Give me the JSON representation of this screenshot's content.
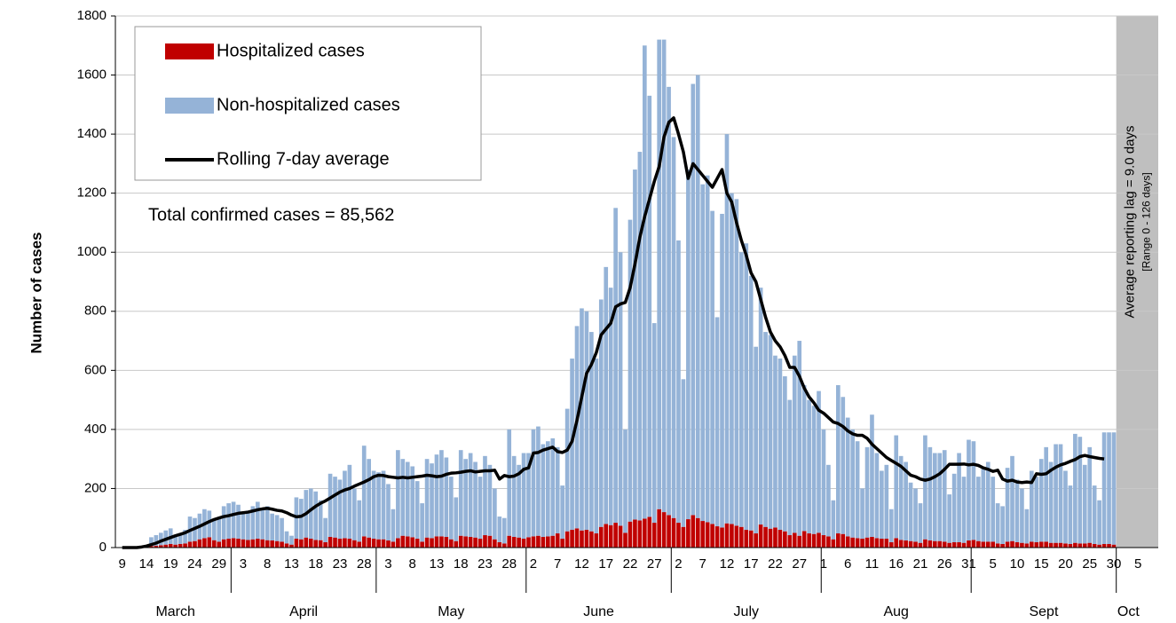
{
  "chart_data": {
    "type": "bar",
    "y_label": "Number of cases",
    "annotations": [
      "Total confirmed cases = 85,562"
    ],
    "band_labels": [
      "Average reporting lag = 9.0 days",
      "[Range 0 - 126 days]"
    ],
    "band_color": "#bfbfbf",
    "months": [
      "March",
      "April",
      "May",
      "June",
      "July",
      "Aug",
      "Sept",
      "Oct"
    ],
    "ylim": [
      0,
      1800
    ],
    "yticks": [
      0,
      200,
      400,
      600,
      800,
      1000,
      1200,
      1400,
      1600,
      1800
    ],
    "grid": true,
    "categories": [
      "9",
      null,
      null,
      null,
      null,
      "14",
      null,
      null,
      null,
      null,
      "19",
      null,
      null,
      null,
      null,
      "24",
      null,
      null,
      null,
      null,
      "29",
      null,
      null,
      null,
      null,
      "3",
      null,
      null,
      null,
      null,
      "8",
      null,
      null,
      null,
      null,
      "13",
      null,
      null,
      null,
      null,
      "18",
      null,
      null,
      null,
      null,
      "23",
      null,
      null,
      null,
      null,
      "28",
      null,
      null,
      null,
      null,
      "3",
      null,
      null,
      null,
      null,
      "8",
      null,
      null,
      null,
      null,
      "13",
      null,
      null,
      null,
      null,
      "18",
      null,
      null,
      null,
      null,
      "23",
      null,
      null,
      null,
      null,
      "28",
      null,
      null,
      null,
      null,
      "2",
      null,
      null,
      null,
      null,
      "7",
      null,
      null,
      null,
      null,
      "12",
      null,
      null,
      null,
      null,
      "17",
      null,
      null,
      null,
      null,
      "22",
      null,
      null,
      null,
      null,
      "27",
      null,
      null,
      null,
      null,
      "2",
      null,
      null,
      null,
      null,
      "7",
      null,
      null,
      null,
      null,
      "12",
      null,
      null,
      null,
      null,
      "17",
      null,
      null,
      null,
      null,
      "22",
      null,
      null,
      null,
      null,
      "27",
      null,
      null,
      null,
      null,
      "1",
      null,
      null,
      null,
      null,
      "6",
      null,
      null,
      null,
      null,
      "11",
      null,
      null,
      null,
      null,
      "16",
      null,
      null,
      null,
      null,
      "21",
      null,
      null,
      null,
      null,
      "26",
      null,
      null,
      null,
      null,
      "31",
      null,
      null,
      null,
      null,
      "5",
      null,
      null,
      null,
      null,
      "10",
      null,
      null,
      null,
      null,
      "15",
      null,
      null,
      null,
      null,
      "20",
      null,
      null,
      null,
      null,
      "25",
      null,
      null,
      null,
      null,
      "30",
      null,
      null,
      null,
      null,
      "5"
    ],
    "series": [
      {
        "name": "Hospitalized cases",
        "kind": "bar",
        "color": "#c00000",
        "values": [
          0,
          0,
          0,
          1,
          1,
          2,
          5,
          6,
          8,
          10,
          12,
          10,
          12,
          14,
          20,
          22,
          28,
          32,
          35,
          25,
          20,
          28,
          30,
          32,
          30,
          28,
          26,
          28,
          30,
          28,
          25,
          24,
          22,
          20,
          14,
          10,
          30,
          28,
          34,
          30,
          26,
          25,
          18,
          36,
          34,
          30,
          32,
          30,
          25,
          20,
          38,
          34,
          30,
          28,
          28,
          24,
          20,
          32,
          40,
          38,
          35,
          30,
          20,
          34,
          32,
          38,
          38,
          36,
          28,
          22,
          40,
          38,
          36,
          34,
          30,
          42,
          40,
          28,
          18,
          14,
          40,
          36,
          34,
          30,
          35,
          38,
          40,
          36,
          38,
          40,
          48,
          30,
          55,
          60,
          65,
          58,
          60,
          55,
          48,
          70,
          80,
          76,
          84,
          74,
          50,
          88,
          95,
          92,
          98,
          104,
          84,
          130,
          120,
          110,
          100,
          84,
          70,
          96,
          110,
          100,
          90,
          86,
          80,
          72,
          68,
          82,
          80,
          74,
          70,
          60,
          58,
          48,
          78,
          70,
          64,
          68,
          60,
          55,
          42,
          50,
          40,
          56,
          48,
          46,
          50,
          42,
          38,
          28,
          48,
          46,
          38,
          34,
          32,
          30,
          34,
          36,
          32,
          30,
          30,
          18,
          32,
          26,
          24,
          22,
          20,
          16,
          28,
          24,
          22,
          22,
          20,
          16,
          18,
          18,
          16,
          24,
          26,
          22,
          20,
          20,
          20,
          14,
          12,
          20,
          22,
          18,
          16,
          14,
          20,
          18,
          20,
          20,
          16,
          16,
          16,
          14,
          12,
          16,
          14,
          14,
          16,
          12,
          10,
          12,
          12,
          10,
          null,
          null,
          null,
          null,
          null
        ]
      },
      {
        "name": "Non-hospitalized cases",
        "kind": "bar",
        "color": "#95b3d7",
        "values": [
          0,
          0,
          2,
          2,
          4,
          6,
          30,
          36,
          42,
          48,
          53,
          30,
          33,
          46,
          85,
          78,
          87,
          98,
          90,
          70,
          80,
          112,
          120,
          123,
          115,
          92,
          99,
          112,
          125,
          102,
          115,
          91,
          88,
          80,
          41,
          30,
          140,
          137,
          161,
          170,
          164,
          135,
          82,
          214,
          206,
          200,
          228,
          250,
          175,
          140,
          307,
          266,
          230,
          227,
          232,
          191,
          110,
          298,
          260,
          252,
          240,
          195,
          130,
          266,
          253,
          277,
          292,
          269,
          212,
          148,
          290,
          262,
          284,
          256,
          210,
          268,
          240,
          172,
          87,
          86,
          360,
          274,
          246,
          290,
          285,
          362,
          370,
          314,
          322,
          330,
          292,
          180,
          415,
          580,
          685,
          752,
          740,
          675,
          592,
          770,
          870,
          804,
          1066,
          926,
          350,
          1022,
          1185,
          1248,
          1602,
          1426,
          676,
          1590,
          1600,
          1450,
          1290,
          956,
          500,
          1184,
          1460,
          1500,
          1140,
          1174,
          1060,
          708,
          1062,
          1318,
          1120,
          1106,
          930,
          970,
          862,
          632,
          802,
          660,
          656,
          582,
          580,
          525,
          458,
          600,
          660,
          494,
          452,
          434,
          480,
          358,
          242,
          132,
          502,
          464,
          402,
          366,
          328,
          170,
          306,
          414,
          288,
          230,
          250,
          112,
          348,
          284,
          266,
          198,
          180,
          134,
          352,
          316,
          298,
          298,
          310,
          164,
          232,
          302,
          224,
          341,
          334,
          218,
          250,
          270,
          220,
          136,
          128,
          250,
          288,
          212,
          184,
          116,
          240,
          222,
          280,
          320,
          274,
          334,
          334,
          246,
          198,
          369,
          361,
          266,
          324,
          198,
          150,
          378,
          378,
          380,
          null,
          null,
          null,
          null,
          null
        ]
      },
      {
        "name": "Rolling 7-day average",
        "kind": "line",
        "color": "#000000",
        "values": [
          0,
          0,
          0,
          0,
          2,
          5,
          10,
          15,
          22,
          28,
          34,
          40,
          45,
          50,
          58,
          65,
          72,
          80,
          88,
          95,
          100,
          105,
          108,
          112,
          116,
          118,
          120,
          124,
          128,
          131,
          133,
          130,
          126,
          124,
          118,
          110,
          104,
          106,
          115,
          128,
          140,
          150,
          158,
          168,
          178,
          188,
          195,
          200,
          208,
          215,
          222,
          230,
          240,
          245,
          244,
          240,
          238,
          236,
          238,
          236,
          238,
          240,
          242,
          245,
          243,
          240,
          242,
          248,
          252,
          253,
          255,
          258,
          260,
          256,
          258,
          260,
          260,
          262,
          232,
          244,
          240,
          242,
          250,
          265,
          270,
          320,
          322,
          330,
          335,
          340,
          325,
          322,
          330,
          360,
          430,
          510,
          590,
          620,
          660,
          720,
          740,
          760,
          815,
          825,
          830,
          880,
          960,
          1050,
          1120,
          1180,
          1240,
          1290,
          1390,
          1440,
          1455,
          1400,
          1340,
          1250,
          1300,
          1280,
          1260,
          1240,
          1220,
          1250,
          1280,
          1200,
          1170,
          1100,
          1040,
          990,
          930,
          900,
          840,
          780,
          730,
          700,
          680,
          650,
          610,
          610,
          580,
          540,
          510,
          490,
          465,
          455,
          440,
          425,
          420,
          410,
          395,
          385,
          380,
          380,
          370,
          350,
          335,
          320,
          305,
          295,
          285,
          275,
          260,
          245,
          240,
          232,
          228,
          232,
          240,
          250,
          265,
          282,
          282,
          282,
          283,
          280,
          282,
          278,
          270,
          265,
          258,
          262,
          232,
          225,
          228,
          222,
          220,
          222,
          220,
          250,
          248,
          250,
          262,
          272,
          280,
          285,
          292,
          298,
          308,
          312,
          308,
          305,
          302,
          300,
          null,
          null,
          null,
          null,
          null,
          null,
          null
        ]
      }
    ]
  }
}
